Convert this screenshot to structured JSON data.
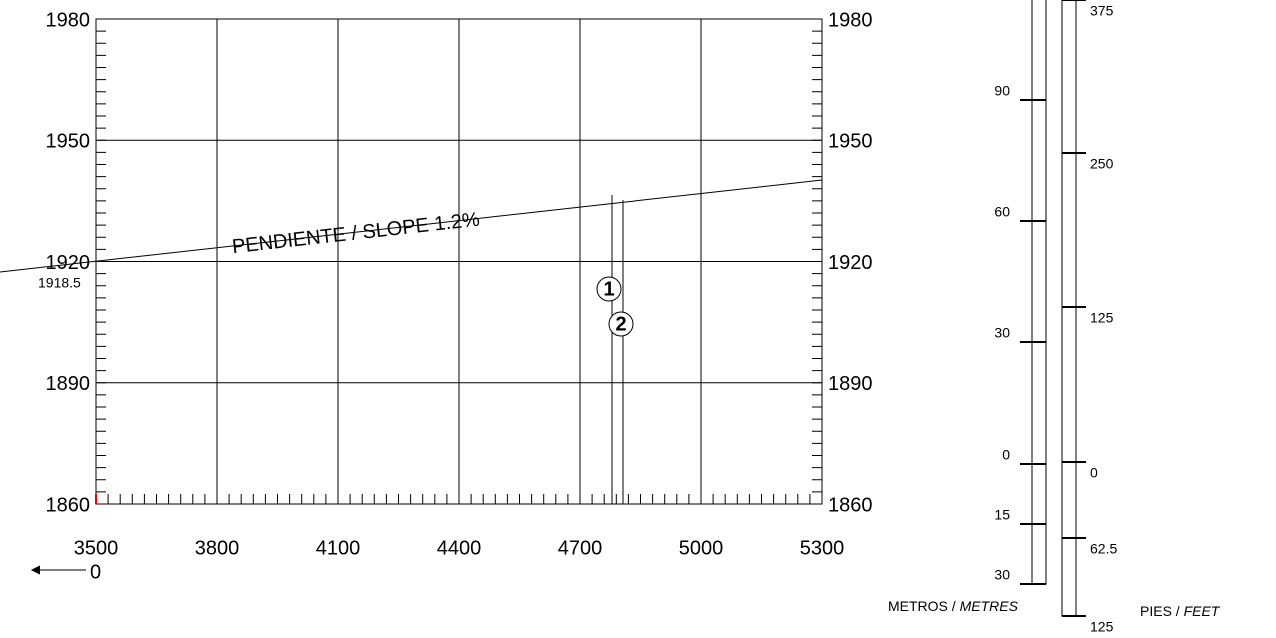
{
  "x_labels": [
    "3500",
    "3800",
    "4100",
    "4400",
    "4700",
    "5000",
    "5300"
  ],
  "y_labels": [
    "1980",
    "1950",
    "1920",
    "1890",
    "1860"
  ],
  "datum_label": "1918.5",
  "slope_label": "PENDIENTE / SLOPE 1.2%",
  "origin_label": "0",
  "obstacles": [
    "1",
    "2"
  ],
  "scale_metres": {
    "labels": [
      "90",
      "60",
      "30",
      "0",
      "15",
      "30"
    ],
    "caption": "METROS / ",
    "caption_italic": "METRES"
  },
  "scale_feet": {
    "labels": [
      "375",
      "250",
      "125",
      "0",
      "62.5",
      "125"
    ],
    "caption": "PIES / ",
    "caption_italic": "FEET"
  }
}
